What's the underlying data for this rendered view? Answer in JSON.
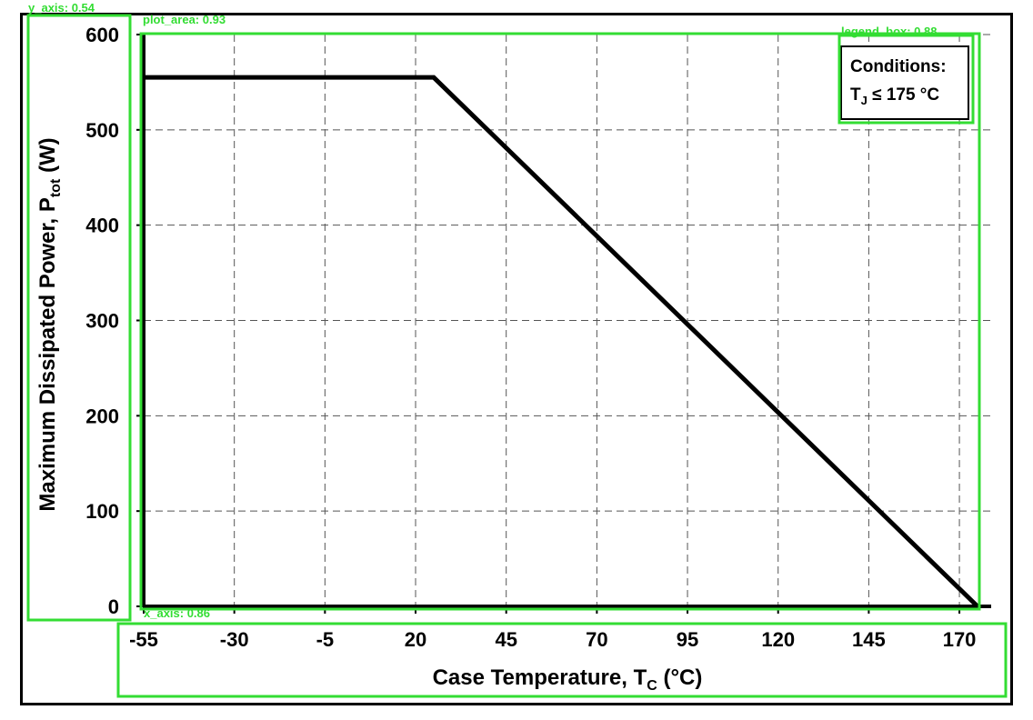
{
  "chart_data": {
    "type": "line",
    "xlabel": "Case Temperature, T",
    "xlabel_sub": "C",
    "xlabel_suffix": " (°C)",
    "ylabel": "Maximum Dissipated Power, P",
    "ylabel_sub": "tot",
    "ylabel_suffix": " (W)",
    "xlim": [
      -55,
      175
    ],
    "ylim": [
      0,
      600
    ],
    "x_ticks": [
      -55,
      -30,
      -5,
      20,
      45,
      70,
      95,
      120,
      145,
      170
    ],
    "y_ticks": [
      0,
      100,
      200,
      300,
      400,
      500,
      600
    ],
    "grid": true,
    "legend_position": "top-right",
    "legend": {
      "line1": "Conditions:",
      "line2_prefix": "T",
      "line2_sub": "J",
      "line2_suffix": " ≤ 175 °C"
    },
    "series": [
      {
        "x": [
          -55,
          25,
          175
        ],
        "y": [
          555,
          555,
          0
        ],
        "color": "#000000"
      }
    ]
  },
  "detections": {
    "y_axis": "y_axis: 0.54",
    "plot_area": "plot_area: 0.93",
    "legend_box": "legend_box: 0.88",
    "x_axis": "x_axis: 0.86"
  },
  "colors": {
    "detection_box": "#33dd33",
    "line": "#000000",
    "grid": "#555555"
  }
}
